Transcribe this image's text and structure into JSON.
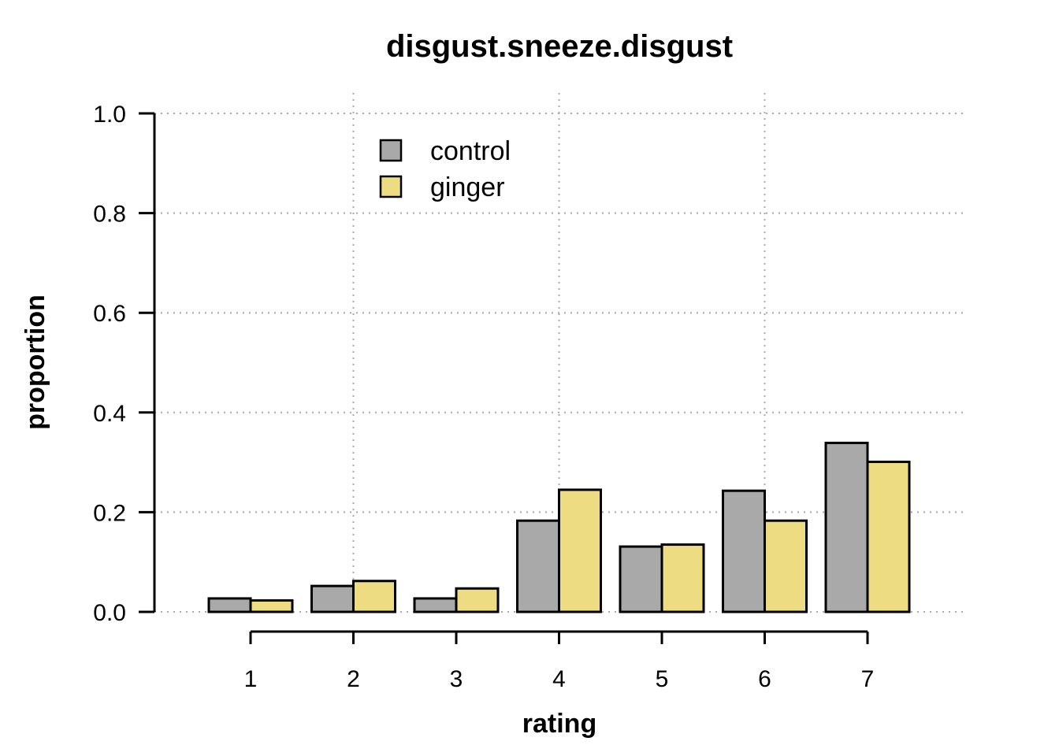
{
  "chart_data": {
    "type": "bar",
    "title": "disgust.sneeze.disgust",
    "xlabel": "rating",
    "ylabel": "proportion",
    "categories": [
      "1",
      "2",
      "3",
      "4",
      "5",
      "6",
      "7"
    ],
    "series": [
      {
        "name": "control",
        "color": "#a9a9a9",
        "values": [
          0.027,
          0.052,
          0.027,
          0.183,
          0.131,
          0.243,
          0.339
        ]
      },
      {
        "name": "ginger",
        "color": "#eedc82",
        "values": [
          0.023,
          0.062,
          0.047,
          0.245,
          0.135,
          0.183,
          0.301
        ]
      }
    ],
    "ylim": [
      0,
      1
    ],
    "yticks": [
      "0.0",
      "0.2",
      "0.4",
      "0.6",
      "0.8",
      "1.0"
    ],
    "grid": true,
    "legend_position": "top-left"
  }
}
